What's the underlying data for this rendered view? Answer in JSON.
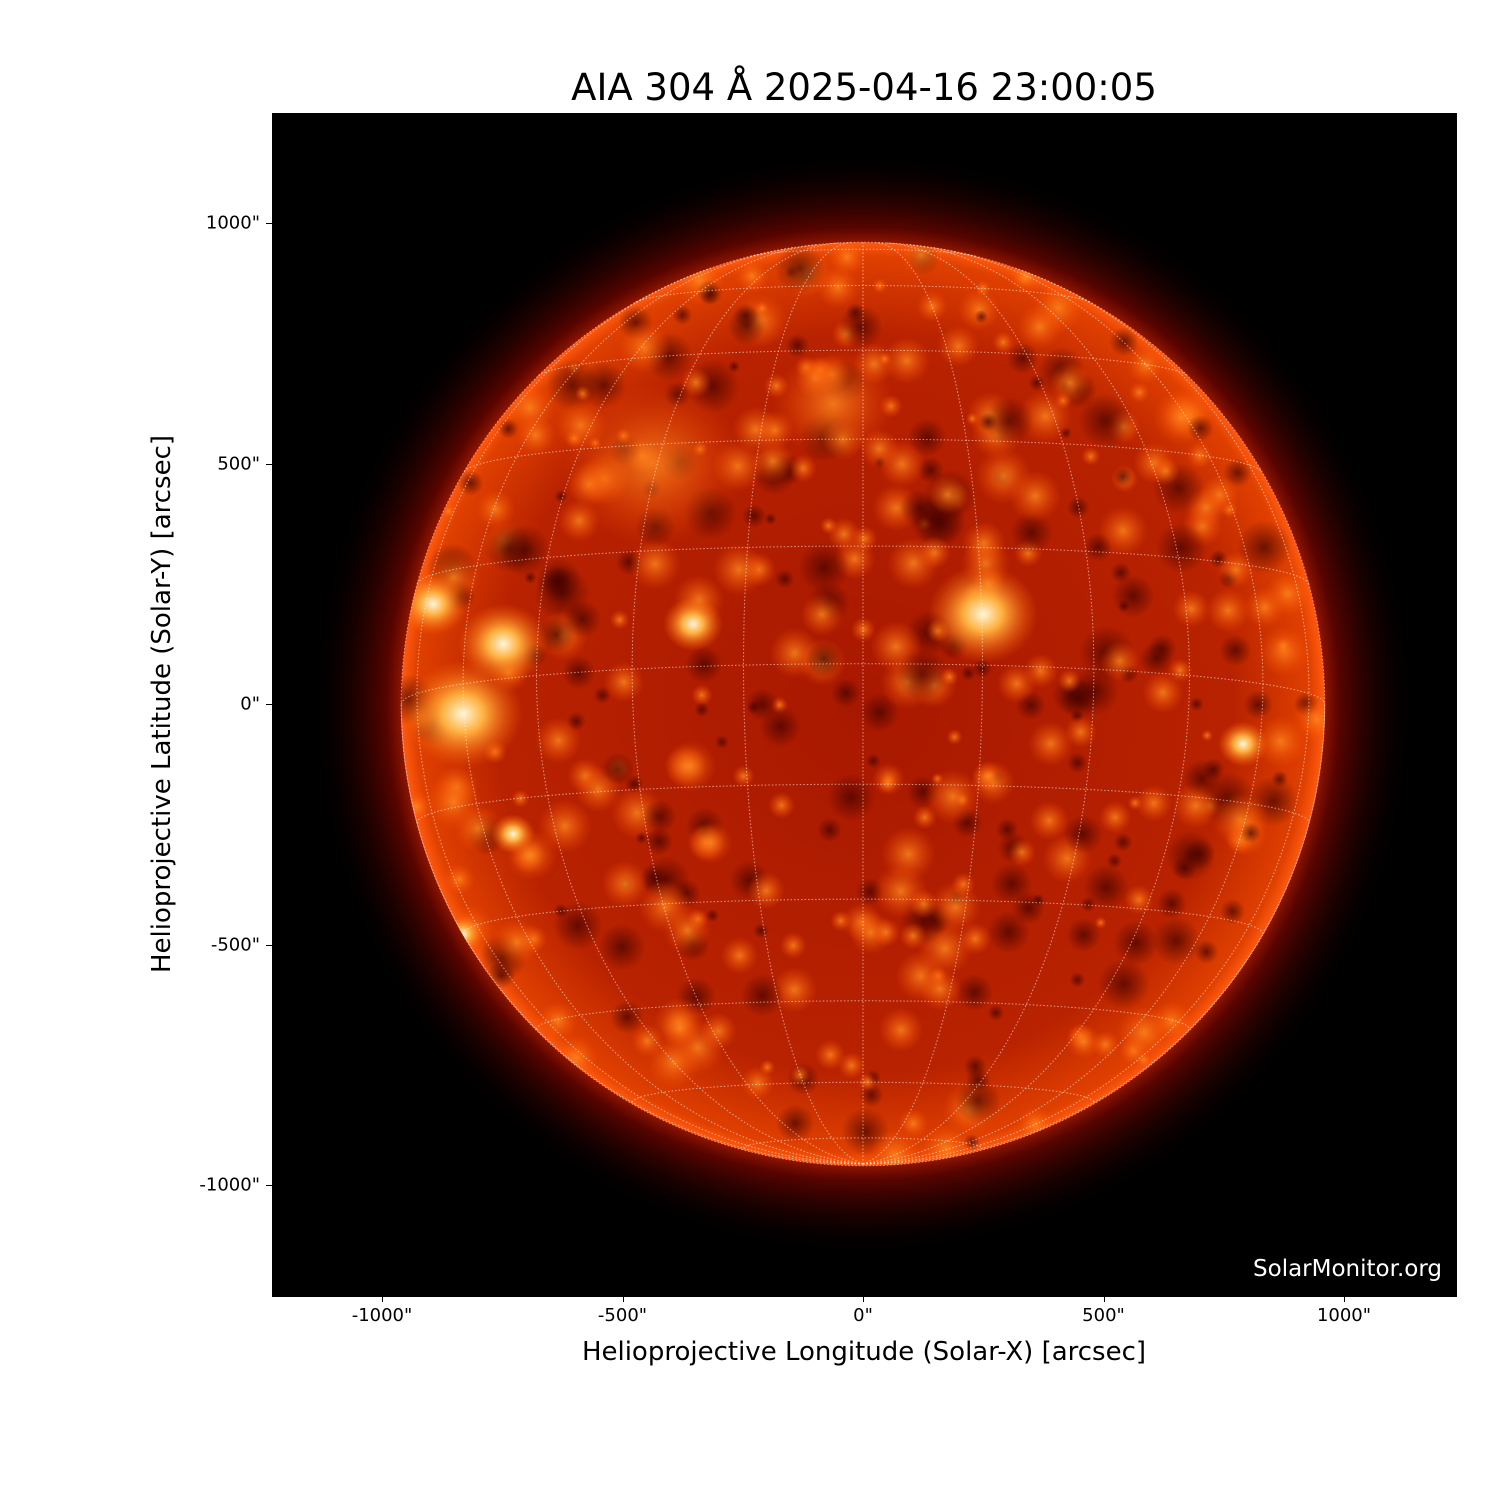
{
  "title": "AIA 304 Å 2025-04-16 23:00:05",
  "x_axis": {
    "label": "Helioprojective Longitude (Solar-X) [arcsec]",
    "range": [
      -1230,
      1230
    ],
    "ticks": [
      {
        "value": -1000,
        "label": "-1000\""
      },
      {
        "value": -500,
        "label": "-500\""
      },
      {
        "value": 0,
        "label": "0\""
      },
      {
        "value": 500,
        "label": "500\""
      },
      {
        "value": 1000,
        "label": "1000\""
      }
    ]
  },
  "y_axis": {
    "label": "Helioprojective Latitude (Solar-Y) [arcsec]",
    "range": [
      -1230,
      1230
    ],
    "ticks": [
      {
        "value": 1000,
        "label": "1000\""
      },
      {
        "value": 500,
        "label": "500\""
      },
      {
        "value": 0,
        "label": "0\""
      },
      {
        "value": -500,
        "label": "-500\""
      },
      {
        "value": -1000,
        "label": "-1000\""
      }
    ]
  },
  "credit": "SolarMonitor.org",
  "solar_radius_arcsec": 960,
  "grid_spacing_deg": 15,
  "colors": {
    "background": "#000000",
    "disk_dark": "#8b0a00",
    "disk_mid": "#d43c00",
    "bright": "#ffcf70",
    "grid": "#ffffff"
  }
}
